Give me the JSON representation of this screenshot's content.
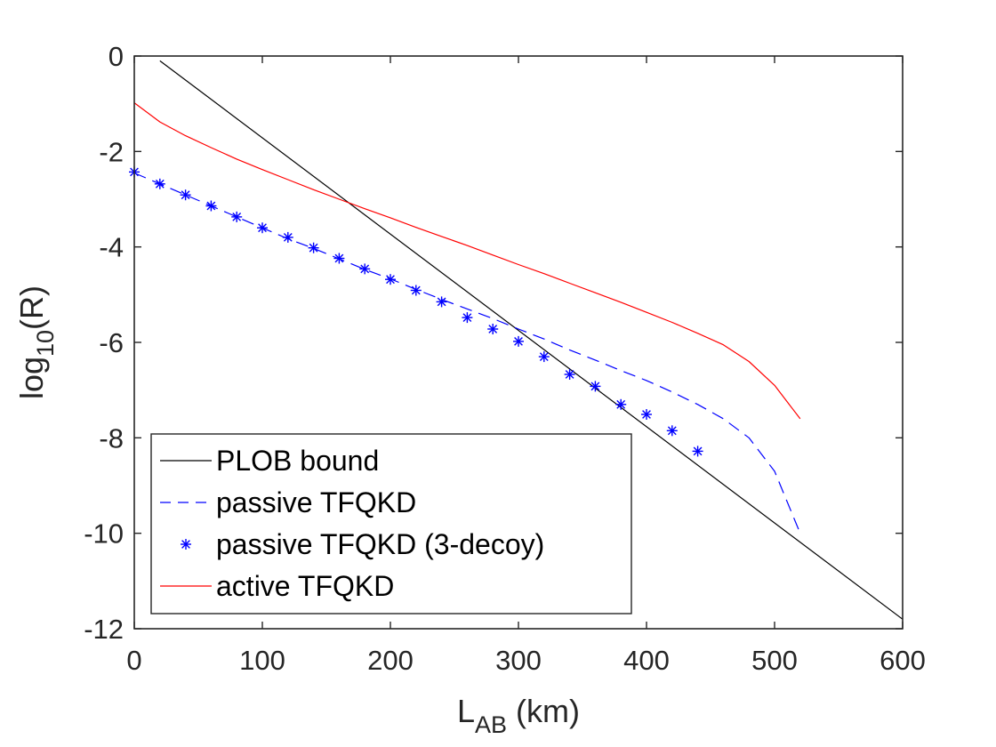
{
  "chart_data": {
    "type": "line",
    "title": "",
    "xlabel": {
      "main": "L",
      "sub": "AB",
      "suffix": " (km)"
    },
    "ylabel": {
      "main": "log",
      "sub": "10",
      "suffix": "(R)"
    },
    "xlim": [
      0,
      600
    ],
    "ylim": [
      -12,
      0
    ],
    "xticks": [
      0,
      100,
      200,
      300,
      400,
      500,
      600
    ],
    "yticks": [
      0,
      -2,
      -4,
      -6,
      -8,
      -10,
      -12
    ],
    "grid": false,
    "legend_position": "bottom-left",
    "series": [
      {
        "name": "PLOB bound",
        "style": "solid",
        "color": "#000000",
        "x": [
          20,
          600
        ],
        "y": [
          -0.1,
          -11.8
        ]
      },
      {
        "name": "passive TFQKD",
        "style": "dashed",
        "color": "#0000ff",
        "x": [
          0,
          20,
          40,
          60,
          80,
          100,
          120,
          140,
          160,
          180,
          200,
          220,
          240,
          260,
          280,
          300,
          320,
          340,
          360,
          380,
          400,
          420,
          440,
          460,
          480,
          500,
          520
        ],
        "y": [
          -2.45,
          -2.68,
          -2.91,
          -3.14,
          -3.37,
          -3.6,
          -3.83,
          -4.03,
          -4.25,
          -4.47,
          -4.67,
          -4.89,
          -5.1,
          -5.3,
          -5.5,
          -5.72,
          -5.93,
          -6.16,
          -6.37,
          -6.59,
          -6.8,
          -7.04,
          -7.3,
          -7.6,
          -8.0,
          -8.7,
          -10.0
        ]
      },
      {
        "name": "passive TFQKD (3-decoy)",
        "style": "markers",
        "color": "#0000ff",
        "x": [
          0,
          20,
          40,
          60,
          80,
          100,
          120,
          140,
          160,
          180,
          200,
          220,
          240,
          260,
          280,
          300,
          320,
          340,
          360,
          380,
          400,
          420,
          440
        ],
        "y": [
          -2.43,
          -2.68,
          -2.91,
          -3.14,
          -3.37,
          -3.6,
          -3.8,
          -4.02,
          -4.24,
          -4.46,
          -4.68,
          -4.91,
          -5.15,
          -5.48,
          -5.72,
          -5.98,
          -6.3,
          -6.67,
          -6.92,
          -7.3,
          -7.51,
          -7.85,
          -8.28
        ]
      },
      {
        "name": "active TFQKD",
        "style": "solid",
        "color": "#ff0000",
        "x": [
          0,
          20,
          40,
          60,
          80,
          100,
          120,
          140,
          160,
          180,
          200,
          220,
          240,
          260,
          280,
          300,
          320,
          340,
          360,
          380,
          400,
          420,
          440,
          460,
          480,
          500,
          520
        ],
        "y": [
          -0.98,
          -1.38,
          -1.67,
          -1.92,
          -2.16,
          -2.38,
          -2.59,
          -2.8,
          -3.0,
          -3.2,
          -3.39,
          -3.59,
          -3.78,
          -3.97,
          -4.17,
          -4.37,
          -4.56,
          -4.76,
          -4.96,
          -5.16,
          -5.37,
          -5.58,
          -5.81,
          -6.05,
          -6.4,
          -6.9,
          -7.6
        ]
      }
    ]
  }
}
